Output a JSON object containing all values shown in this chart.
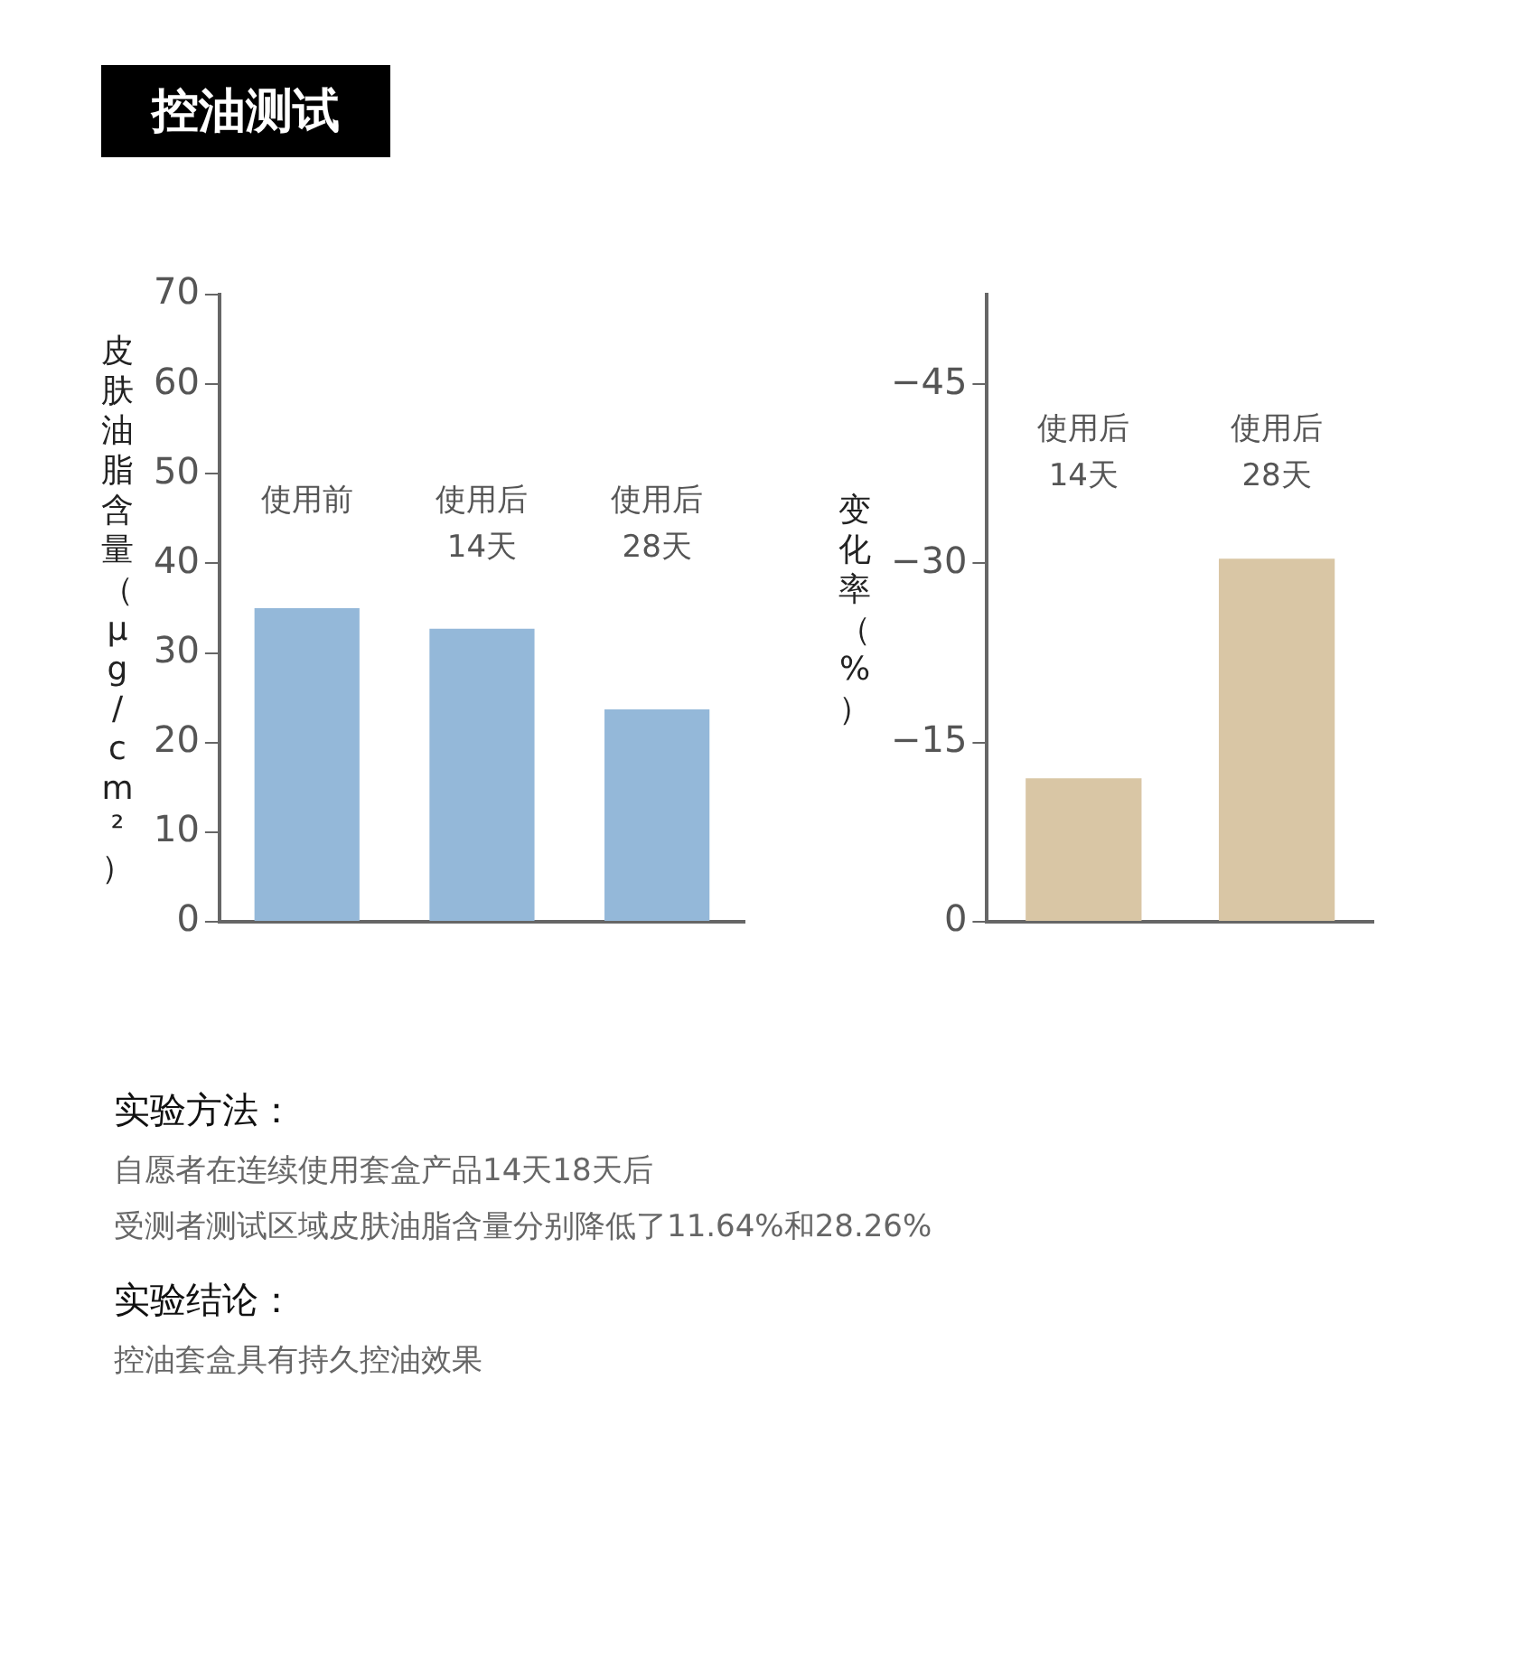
{
  "chart_data": [
    {
      "type": "bar",
      "title": "控油测试",
      "ylabel": "皮肤油脂含量（μg/cm²）",
      "categories": [
        "使用前",
        "使用后\n14天",
        "使用后\n28天"
      ],
      "values": [
        35,
        32.7,
        23.7
      ],
      "color": "#94b8d9",
      "ylim": [
        0,
        70
      ],
      "yticks": [
        0,
        10,
        20,
        30,
        40,
        50,
        60,
        70
      ],
      "grid": false,
      "legend": false,
      "annotations": [
        "实验方法：",
        "自愿者在连续使用套盒产品14天18天后",
        "受测者测试区域皮肤油脂含量分别降低了11.64%和28.26%",
        "实验结论：",
        "控油套盒具有持久控油效果"
      ]
    },
    {
      "type": "bar",
      "ylabel": "变化率（%）",
      "categories": [
        "使用后\n14天",
        "使用后\n28天"
      ],
      "values": [
        -12,
        -30.4
      ],
      "color": "#d9c6a5",
      "ylim": [
        0,
        -52.5
      ],
      "yticks": [
        0,
        -15,
        -30,
        -45
      ],
      "grid": false,
      "legend": false
    }
  ]
}
